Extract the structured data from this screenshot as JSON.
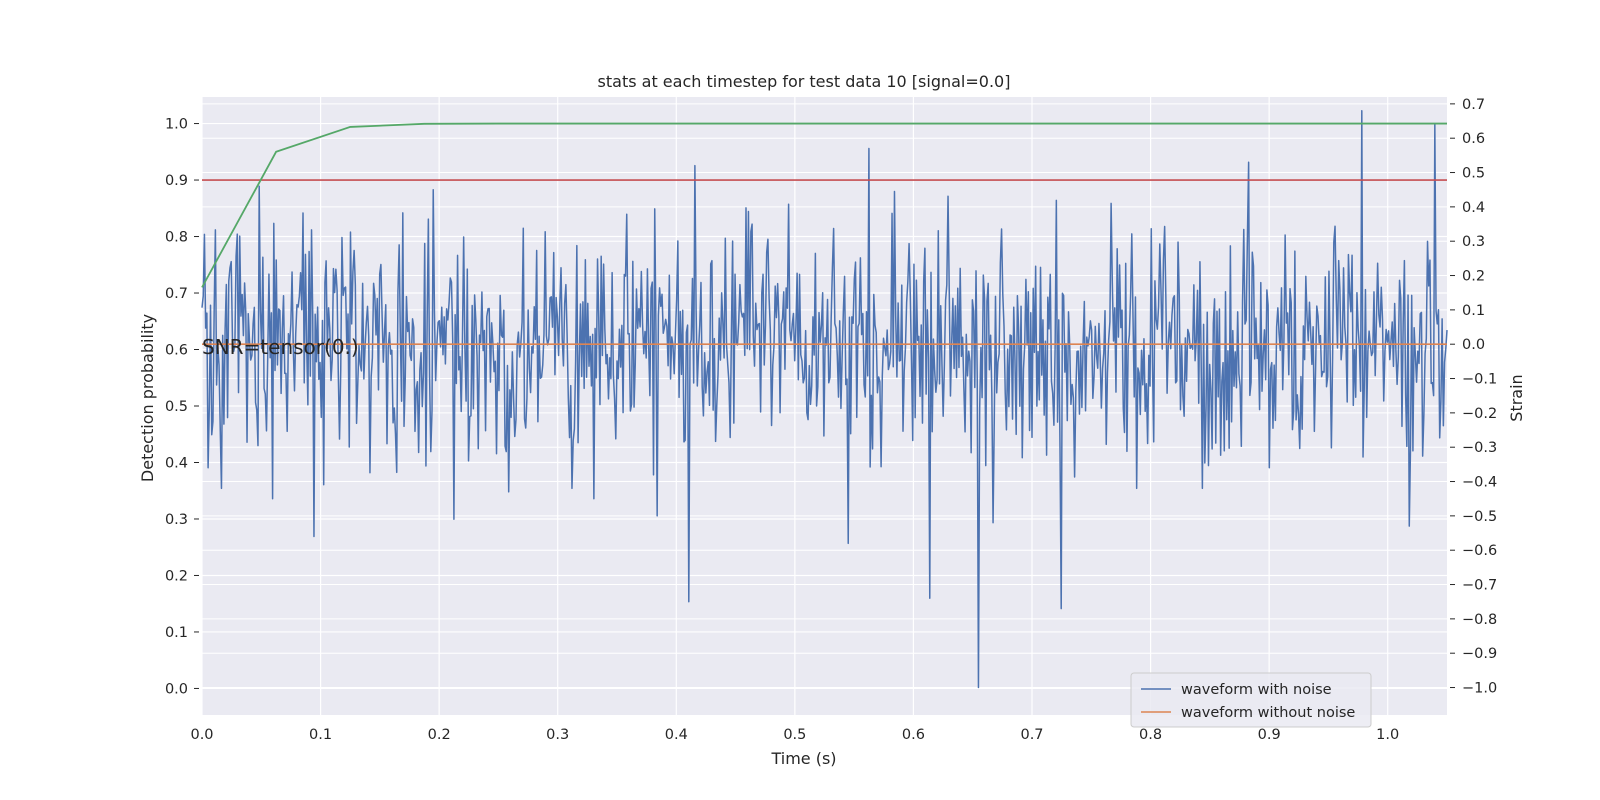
{
  "chart_data": {
    "type": "line",
    "title": "stats at each timestep for test data 10 [signal=0.0]",
    "xlabel": "Time (s)",
    "ylabel_left": "Detection probability",
    "ylabel_right": "Strain",
    "xlim": [
      0.0,
      1.05
    ],
    "ylim_left": [
      -0.047,
      1.047
    ],
    "ylim_right": [
      -1.08,
      0.72
    ],
    "x_ticks": [
      "0.0",
      "0.1",
      "0.2",
      "0.3",
      "0.4",
      "0.5",
      "0.6",
      "0.7",
      "0.8",
      "0.9",
      "1.0"
    ],
    "y_ticks_left": [
      "0.0",
      "0.1",
      "0.2",
      "0.3",
      "0.4",
      "0.5",
      "0.6",
      "0.7",
      "0.8",
      "0.9",
      "1.0"
    ],
    "y_ticks_right": [
      "−1.0",
      "−0.9",
      "−0.8",
      "−0.7",
      "−0.6",
      "−0.5",
      "−0.4",
      "−0.3",
      "−0.2",
      "−0.1",
      "0.0",
      "0.1",
      "0.2",
      "0.3",
      "0.4",
      "0.5",
      "0.6",
      "0.7"
    ],
    "grid": true,
    "legend_position": "lower-right",
    "annotation": "SNR=tensor(0.)",
    "threshold": {
      "value": 0.9,
      "color": "#c44e52"
    },
    "detection_probability": {
      "color": "#55a868",
      "x": [
        0.0,
        0.0625,
        0.125,
        0.1875,
        0.25,
        0.3125,
        0.375,
        0.4375,
        0.5,
        0.5625,
        0.625,
        0.6875,
        0.75,
        0.8125,
        0.875,
        0.9375,
        1.0,
        1.05
      ],
      "y": [
        0.71,
        0.95,
        0.994,
        0.9995,
        1.0,
        1.0,
        1.0,
        1.0,
        1.0,
        1.0,
        1.0,
        1.0,
        1.0,
        1.0,
        1.0,
        1.0,
        1.0,
        1.0
      ]
    },
    "series": [
      {
        "name": "waveform with noise",
        "color": "#4c72b0",
        "axis": "right",
        "n_samples": 1024,
        "spikes": [
          {
            "t": 0.0051,
            "v": -0.36
          },
          {
            "t": 0.0485,
            "v": 0.46
          },
          {
            "t": 0.0595,
            "v": -0.45
          },
          {
            "t": 0.094,
            "v": -0.56
          },
          {
            "t": 0.195,
            "v": 0.45
          },
          {
            "t": 0.2125,
            "v": -0.51
          },
          {
            "t": 0.2585,
            "v": -0.43
          },
          {
            "t": 0.3305,
            "v": -0.45
          },
          {
            "t": 0.3835,
            "v": -0.5
          },
          {
            "t": 0.411,
            "v": -0.75
          },
          {
            "t": 0.4155,
            "v": 0.52
          },
          {
            "t": 0.5455,
            "v": -0.58
          },
          {
            "t": 0.562,
            "v": 0.57
          },
          {
            "t": 0.614,
            "v": -0.74
          },
          {
            "t": 0.6545,
            "v": -1.0
          },
          {
            "t": 0.667,
            "v": -0.52
          },
          {
            "t": 0.7245,
            "v": -0.77
          },
          {
            "t": 0.8828,
            "v": 0.53
          },
          {
            "t": 0.9,
            "v": -0.36
          },
          {
            "t": 0.9785,
            "v": 0.68
          },
          {
            "t": 1.0185,
            "v": -0.53
          },
          {
            "t": 1.04,
            "v": 0.64
          }
        ]
      },
      {
        "name": "waveform without noise",
        "color": "#dd8452",
        "axis": "right",
        "x": [
          0.0,
          1.05
        ],
        "y": [
          0.0,
          0.0
        ]
      }
    ]
  }
}
